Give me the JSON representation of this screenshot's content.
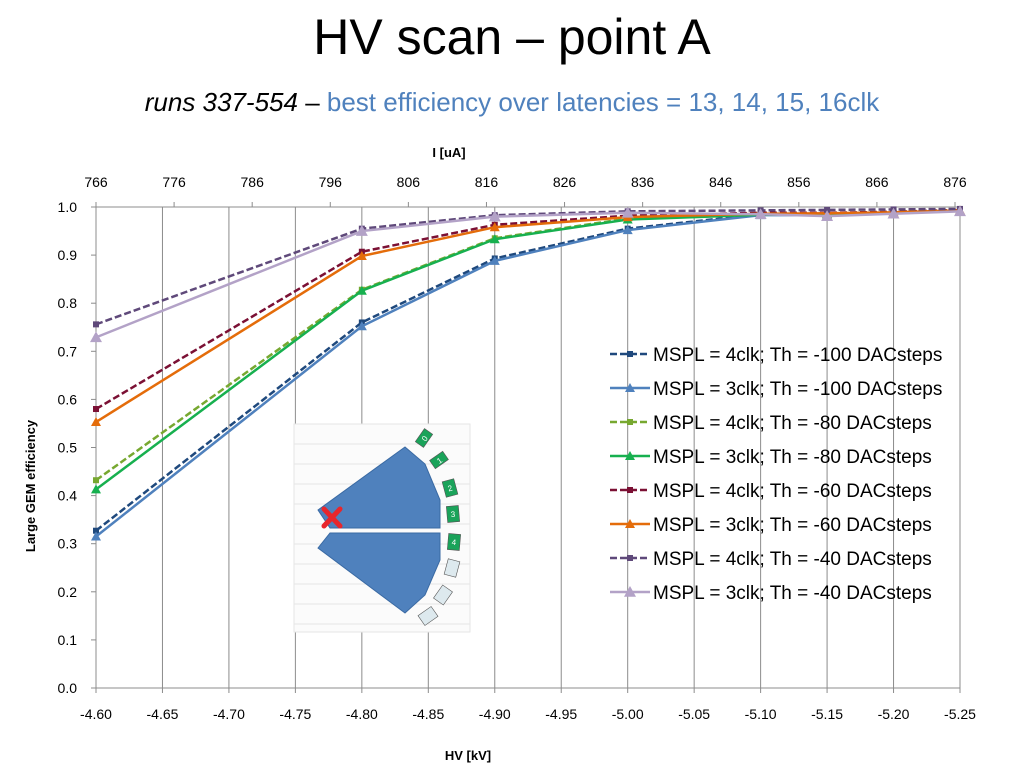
{
  "header": {
    "title": "HV scan – point A",
    "subtitle_runs": "runs 337-554",
    "subtitle_sep": " – ",
    "subtitle_desc": "best efficiency over latencies = 13, 14, 15, 16clk"
  },
  "inset": {
    "sector_labels": [
      "0",
      "1",
      "2",
      "3",
      "4"
    ],
    "marker": "red-x-marker",
    "colors": {
      "chamber": "#4f81bd",
      "active_sector": "#1aa35a",
      "inactive_sector": "#dde9ee"
    }
  },
  "chart_data": {
    "type": "line",
    "xlabel": "HV [kV]",
    "ylabel": "Large GEM efficiency",
    "x2label": "I [uA]",
    "x": [
      -4.6,
      -4.8,
      -4.9,
      -5.0,
      -5.1,
      -5.15,
      -5.2,
      -5.25
    ],
    "xlim": [
      -4.6,
      -5.25
    ],
    "x_ticks": [
      "-4.60",
      "-4.65",
      "-4.70",
      "-4.75",
      "-4.80",
      "-4.85",
      "-4.90",
      "-4.95",
      "-5.00",
      "-5.05",
      "-5.10",
      "-5.15",
      "-5.20",
      "-5.25"
    ],
    "x2_ticks": [
      "766",
      "776",
      "786",
      "796",
      "806",
      "816",
      "826",
      "836",
      "846",
      "856",
      "866",
      "876"
    ],
    "ylim": [
      0,
      1
    ],
    "y_ticks": [
      "0.0",
      "0.1",
      "0.2",
      "0.3",
      "0.4",
      "0.5",
      "0.6",
      "0.7",
      "0.8",
      "0.9",
      "1.0"
    ],
    "grid": "vertical",
    "legend_position": "right",
    "series": [
      {
        "name": "MSPL = 4clk; Th = -100 DACsteps",
        "color": "#1f497d",
        "dash": true,
        "marker": "square",
        "values": [
          0.327,
          0.76,
          0.893,
          0.955,
          0.985,
          0.985,
          0.988,
          0.993
        ]
      },
      {
        "name": "MSPL = 3clk; Th = -100 DACsteps",
        "color": "#4f81bd",
        "dash": false,
        "marker": "triangle",
        "values": [
          0.315,
          0.752,
          0.888,
          0.952,
          0.983,
          0.983,
          0.987,
          0.992
        ]
      },
      {
        "name": "MSPL = 4clk; Th = -80 DACsteps",
        "color": "#77a830",
        "dash": true,
        "marker": "square",
        "values": [
          0.432,
          0.828,
          0.935,
          0.976,
          0.985,
          0.986,
          0.988,
          0.993
        ]
      },
      {
        "name": "MSPL = 3clk; Th = -80 DACsteps",
        "color": "#17b04f",
        "dash": false,
        "marker": "triangle",
        "values": [
          0.413,
          0.826,
          0.933,
          0.974,
          0.984,
          0.985,
          0.987,
          0.992
        ]
      },
      {
        "name": "MSPL = 4clk; Th = -60 DACsteps",
        "color": "#7b1034",
        "dash": true,
        "marker": "square",
        "values": [
          0.58,
          0.907,
          0.963,
          0.982,
          0.988,
          0.988,
          0.99,
          0.994
        ]
      },
      {
        "name": "MSPL = 3clk; Th = -60 DACsteps",
        "color": "#e46c0a",
        "dash": false,
        "marker": "triangle",
        "values": [
          0.553,
          0.898,
          0.958,
          0.979,
          0.986,
          0.987,
          0.989,
          0.993
        ]
      },
      {
        "name": "MSPL = 4clk; Th = -40 DACsteps",
        "color": "#5f497a",
        "dash": true,
        "marker": "square",
        "values": [
          0.756,
          0.955,
          0.983,
          0.991,
          0.993,
          0.994,
          0.995,
          0.996
        ]
      },
      {
        "name": "MSPL = 3clk; Th = -40 DACsteps",
        "color": "#b3a2c7",
        "dash": false,
        "marker": "triangle",
        "values": [
          0.729,
          0.95,
          0.98,
          0.988,
          0.985,
          0.981,
          0.986,
          0.991
        ]
      }
    ]
  }
}
